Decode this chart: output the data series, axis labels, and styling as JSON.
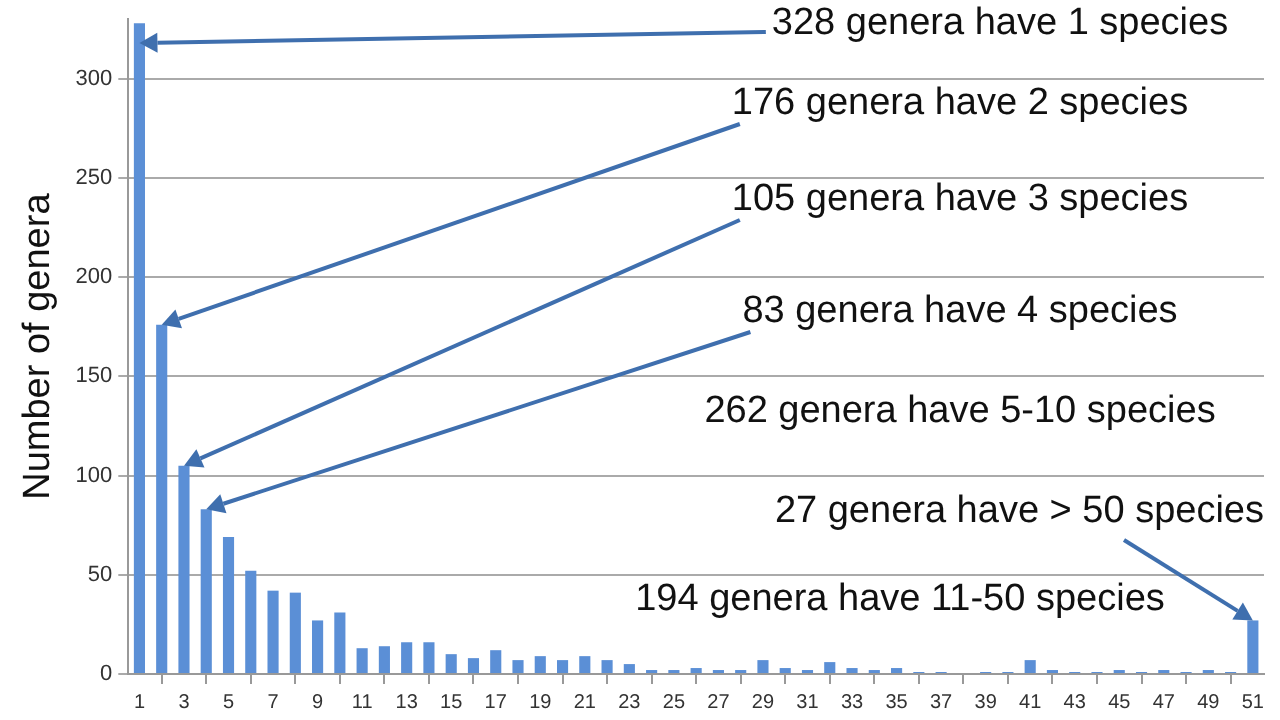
{
  "chart_data": {
    "type": "bar",
    "ylabel": "Number of genera",
    "color": "#5b8fd6",
    "x": [
      1,
      2,
      3,
      4,
      5,
      6,
      7,
      8,
      9,
      10,
      11,
      12,
      13,
      14,
      15,
      16,
      17,
      18,
      19,
      20,
      21,
      22,
      23,
      24,
      25,
      26,
      27,
      28,
      29,
      30,
      31,
      32,
      33,
      34,
      35,
      36,
      37,
      38,
      39,
      40,
      41,
      42,
      43,
      44,
      45,
      46,
      47,
      48,
      49,
      50,
      51
    ],
    "values": [
      328,
      176,
      105,
      83,
      69,
      52,
      42,
      41,
      27,
      31,
      13,
      14,
      16,
      16,
      10,
      8,
      12,
      7,
      9,
      7,
      9,
      7,
      5,
      2,
      2,
      3,
      2,
      2,
      7,
      3,
      2,
      6,
      3,
      2,
      3,
      1,
      1,
      0,
      1,
      1,
      7,
      2,
      1,
      1,
      2,
      1,
      2,
      1,
      2,
      1,
      27
    ],
    "xlim": [
      0.5,
      51.5
    ],
    "xticks": [
      1,
      3,
      5,
      7,
      9,
      11,
      13,
      15,
      17,
      19,
      21,
      23,
      25,
      27,
      29,
      31,
      33,
      35,
      37,
      39,
      41,
      43,
      45,
      47,
      49,
      51
    ],
    "ylim": [
      0,
      330
    ],
    "yticks": [
      0,
      50,
      100,
      150,
      200,
      250,
      300
    ],
    "grid": "y",
    "legend": false,
    "annotations": [
      "328 genera have 1 species",
      "176 genera have 2 species",
      "105 genera have 3 species",
      "83 genera have 4 species",
      "262 genera have 5-10 species",
      {
        "text": "27 genera have > 50 species",
        "x": 51,
        "y": 27
      },
      "194 genera have 11-50 species"
    ]
  }
}
